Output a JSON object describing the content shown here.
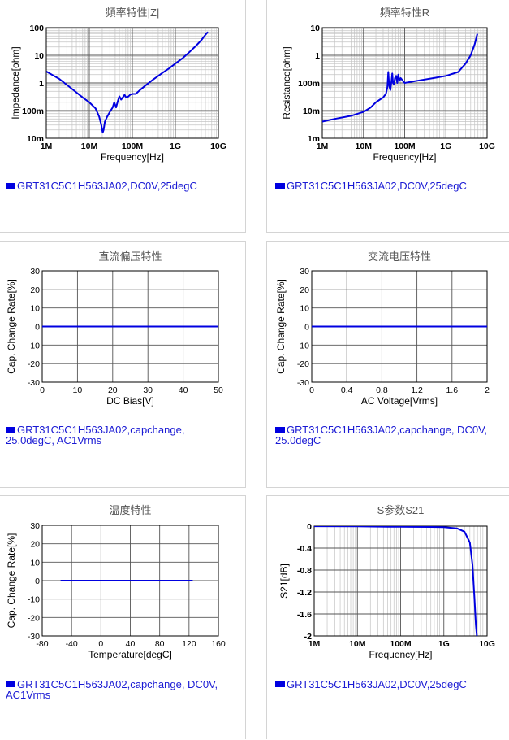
{
  "colors": {
    "series": "#0000e0",
    "grid": "#888888",
    "axis": "#000000",
    "title": "#555555",
    "legend_text": "#1a1ad4"
  },
  "chart_data": [
    {
      "type": "line",
      "title": "頻率特性|Z|",
      "xlabel": "Frequency[Hz]",
      "ylabel": "Impedance[ohm]",
      "x_scale": "log",
      "y_scale": "log",
      "xlim": [
        1000000,
        10000000000
      ],
      "ylim": [
        0.01,
        100
      ],
      "xticks": [
        1000000,
        10000000,
        100000000,
        1000000000,
        10000000000
      ],
      "xtick_labels": [
        "1M",
        "10M",
        "100M",
        "1G",
        "10G"
      ],
      "yticks": [
        0.01,
        0.1,
        1,
        10,
        100
      ],
      "ytick_labels": [
        "10m",
        "100m",
        "1",
        "10",
        "100"
      ],
      "legend": [
        "GRT31C5C1H563JA02,DC0V,25degC"
      ],
      "series": [
        {
          "name": "GRT31C5C1H563JA02,DC0V,25degC",
          "x": [
            1000000,
            2000000,
            4000000,
            7000000,
            10000000,
            14000000,
            17000000,
            19000000,
            20500000,
            21500000,
            23000000,
            26000000,
            30000000,
            35000000,
            38000000,
            42000000,
            46000000,
            50000000,
            55000000,
            60000000,
            66000000,
            72000000,
            80000000,
            90000000,
            100000000,
            120000000,
            150000000,
            200000000,
            300000000,
            500000000,
            700000000,
            1000000000,
            1500000000,
            2000000000,
            3000000000,
            4000000000,
            5000000000,
            5700000000
          ],
          "y": [
            2.6,
            1.4,
            0.6,
            0.3,
            0.2,
            0.12,
            0.06,
            0.03,
            0.016,
            0.02,
            0.04,
            0.06,
            0.09,
            0.13,
            0.2,
            0.13,
            0.22,
            0.33,
            0.25,
            0.3,
            0.37,
            0.3,
            0.32,
            0.38,
            0.4,
            0.4,
            0.55,
            0.8,
            1.3,
            2.3,
            3.3,
            5,
            8,
            12,
            22,
            35,
            55,
            70
          ]
        }
      ]
    },
    {
      "type": "line",
      "title": "頻率特性R",
      "xlabel": "Frequency[Hz]",
      "ylabel": "Resistance[ohm]",
      "x_scale": "log",
      "y_scale": "log",
      "xlim": [
        1000000,
        10000000000
      ],
      "ylim": [
        0.001,
        10
      ],
      "xticks": [
        1000000,
        10000000,
        100000000,
        1000000000,
        10000000000
      ],
      "xtick_labels": [
        "1M",
        "10M",
        "100M",
        "1G",
        "10G"
      ],
      "yticks": [
        0.001,
        0.01,
        0.1,
        1,
        10
      ],
      "ytick_labels": [
        "1m",
        "10m",
        "100m",
        "1",
        "10"
      ],
      "legend": [
        "GRT31C5C1H563JA02,DC0V,25degC"
      ],
      "series": [
        {
          "name": "GRT31C5C1H563JA02,DC0V,25degC",
          "x": [
            1000000,
            2000000,
            5000000,
            10000000,
            15000000,
            20000000,
            25000000,
            30000000,
            35000000,
            38000000,
            40000000,
            42000000,
            45000000,
            48000000,
            50000000,
            52000000,
            55000000,
            58000000,
            62000000,
            66000000,
            70000000,
            75000000,
            80000000,
            90000000,
            100000000,
            200000000,
            500000000,
            1000000000,
            2000000000,
            3000000000,
            4000000000,
            5000000000,
            5800000000
          ],
          "y": [
            0.004,
            0.005,
            0.0065,
            0.009,
            0.013,
            0.02,
            0.025,
            0.03,
            0.04,
            0.07,
            0.25,
            0.08,
            0.055,
            0.12,
            0.22,
            0.1,
            0.09,
            0.15,
            0.18,
            0.1,
            0.2,
            0.12,
            0.15,
            0.12,
            0.1,
            0.12,
            0.15,
            0.18,
            0.25,
            0.5,
            1.0,
            2.5,
            6
          ]
        }
      ]
    },
    {
      "type": "line",
      "title": "直流偏压特性",
      "xlabel": "DC Bias[V]",
      "ylabel": "Cap. Change Rate[%]",
      "xlim": [
        0,
        50
      ],
      "ylim": [
        -30,
        30
      ],
      "xticks": [
        0,
        10,
        20,
        30,
        40,
        50
      ],
      "xtick_labels": [
        "0",
        "10",
        "20",
        "30",
        "40",
        "50"
      ],
      "yticks": [
        -30,
        -20,
        -10,
        0,
        10,
        20,
        30
      ],
      "ytick_labels": [
        "-30",
        "-20",
        "-10",
        "0",
        "10",
        "20",
        "30"
      ],
      "legend": [
        "GRT31C5C1H563JA02,capchange, 25.0degC, AC1Vrms"
      ],
      "series": [
        {
          "name": "GRT31C5C1H563JA02,capchange, 25.0degC, AC1Vrms",
          "x": [
            0,
            50
          ],
          "y": [
            0,
            0
          ]
        }
      ]
    },
    {
      "type": "line",
      "title": "交流电压特性",
      "xlabel": "AC Voltage[Vrms]",
      "ylabel": "Cap. Change Rate[%]",
      "xlim": [
        0,
        2
      ],
      "ylim": [
        -30,
        30
      ],
      "xticks": [
        0,
        0.4,
        0.8,
        1.2,
        1.6,
        2
      ],
      "xtick_labels": [
        "0",
        "0.4",
        "0.8",
        "1.2",
        "1.6",
        "2"
      ],
      "yticks": [
        -30,
        -20,
        -10,
        0,
        10,
        20,
        30
      ],
      "ytick_labels": [
        "-30",
        "-20",
        "-10",
        "0",
        "10",
        "20",
        "30"
      ],
      "legend": [
        "GRT31C5C1H563JA02,capchange, DC0V, 25.0degC"
      ],
      "series": [
        {
          "name": "GRT31C5C1H563JA02,capchange, DC0V, 25.0degC",
          "x": [
            0,
            2
          ],
          "y": [
            0,
            0
          ]
        }
      ]
    },
    {
      "type": "line",
      "title": "温度特性",
      "xlabel": "Temperature[degC]",
      "ylabel": "Cap. Change Rate[%]",
      "xlim": [
        -80,
        160
      ],
      "ylim": [
        -30,
        30
      ],
      "xticks": [
        -80,
        -40,
        0,
        40,
        80,
        120,
        160
      ],
      "xtick_labels": [
        "-80",
        "-40",
        "0",
        "40",
        "80",
        "120",
        "160"
      ],
      "yticks": [
        -30,
        -20,
        -10,
        0,
        10,
        20,
        30
      ],
      "ytick_labels": [
        "-30",
        "-20",
        "-10",
        "0",
        "10",
        "20",
        "30"
      ],
      "legend": [
        "GRT31C5C1H563JA02,capchange, DC0V, AC1Vrms"
      ],
      "series": [
        {
          "name": "GRT31C5C1H563JA02,capchange, DC0V, AC1Vrms",
          "x": [
            -55,
            125
          ],
          "y": [
            0,
            0
          ]
        }
      ]
    },
    {
      "type": "line",
      "title": "S参数S21",
      "xlabel": "Frequency[Hz]",
      "ylabel": "S21[dB]",
      "x_scale": "log",
      "xlim": [
        1000000,
        10000000000
      ],
      "ylim": [
        -2,
        0
      ],
      "xticks": [
        1000000,
        10000000,
        100000000,
        1000000000,
        10000000000
      ],
      "xtick_labels": [
        "1M",
        "10M",
        "100M",
        "1G",
        "10G"
      ],
      "yticks": [
        -2,
        -1.6,
        -1.2,
        -0.8,
        -0.4,
        0
      ],
      "ytick_labels": [
        "-2",
        "-1.6",
        "-1.2",
        "-0.8",
        "-0.4",
        "0"
      ],
      "legend": [
        "GRT31C5C1H563JA02,DC0V,25degC"
      ],
      "series": [
        {
          "name": "GRT31C5C1H563JA02,DC0V,25degC",
          "x": [
            1000000,
            10000000,
            50000000,
            100000000,
            500000000,
            1000000000,
            2000000000,
            3000000000,
            4000000000,
            4600000000,
            5100000000,
            5500000000,
            5800000000
          ],
          "y": [
            -0.002,
            -0.005,
            -0.01,
            -0.012,
            -0.015,
            -0.02,
            -0.04,
            -0.1,
            -0.3,
            -0.7,
            -1.3,
            -1.8,
            -2.0
          ]
        }
      ]
    }
  ]
}
